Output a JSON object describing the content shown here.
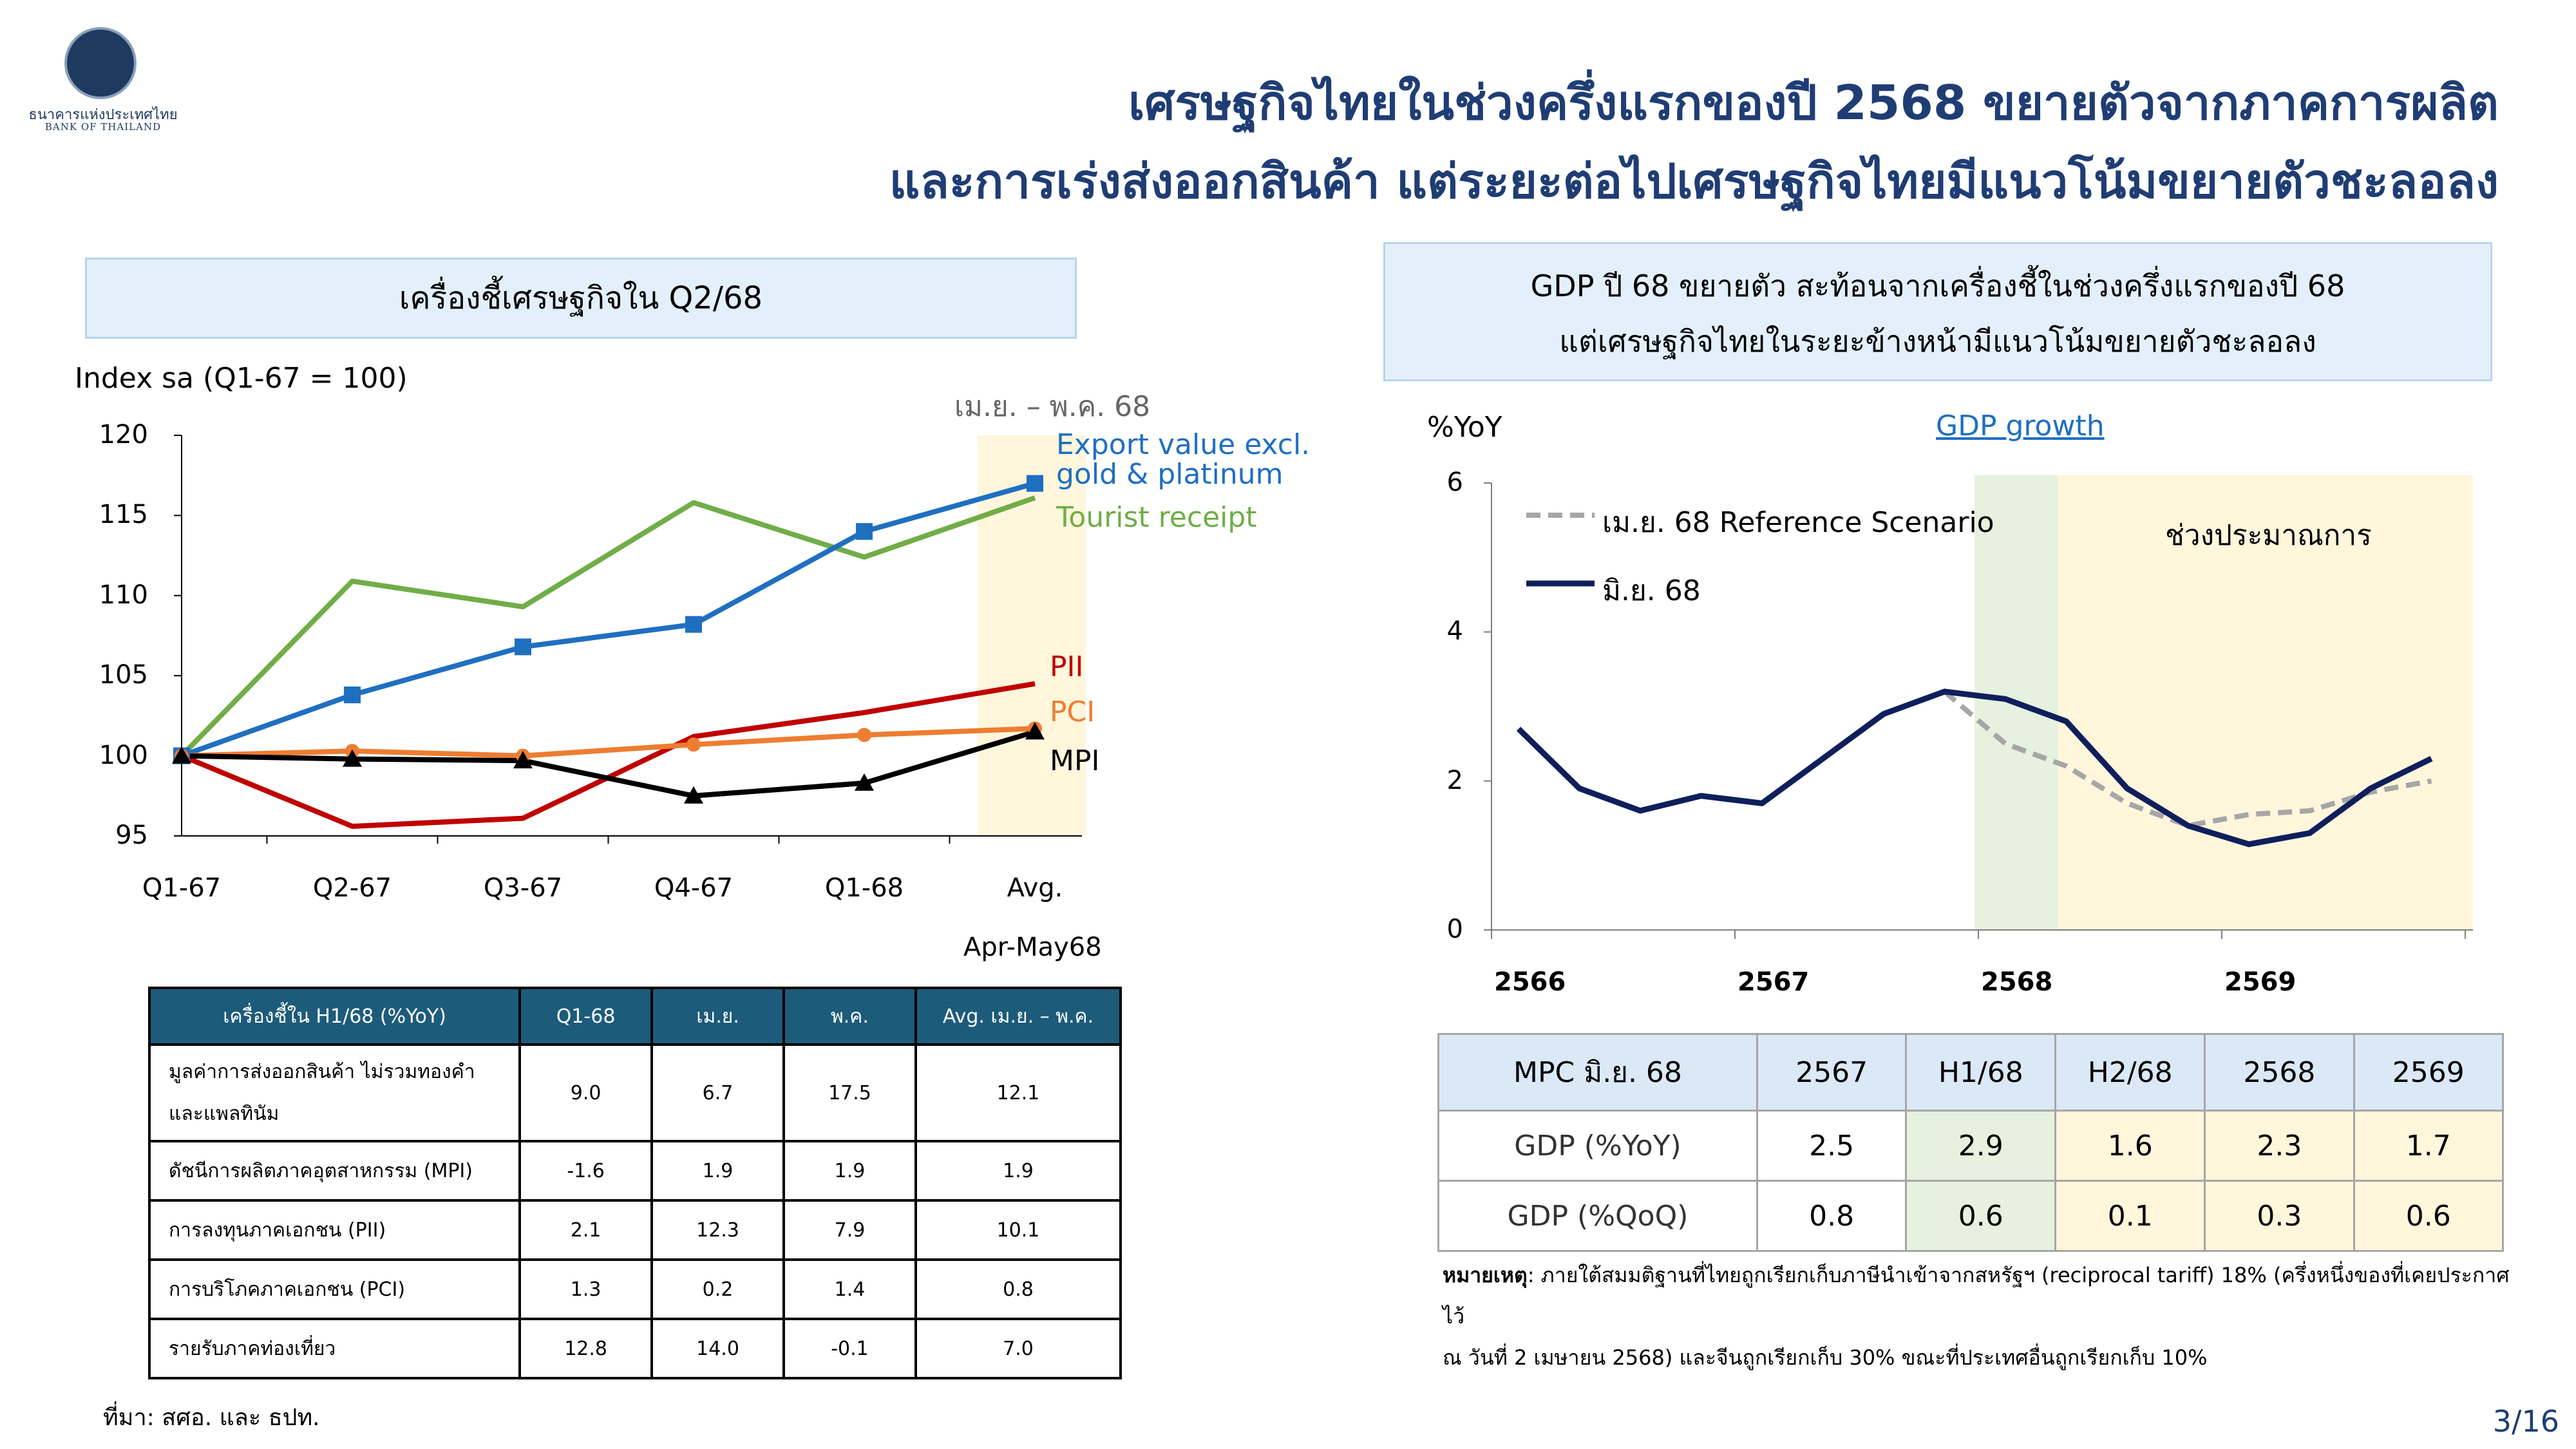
{
  "header": {
    "logo_text_th": "ธนาคารแห่งประเทศไทย",
    "logo_text_en": "BANK OF THAILAND",
    "title_line1": "เศรษฐกิจไทยในช่วงครึ่งแรกของปี 2568 ขยายตัวจากภาคการผลิต",
    "title_line2": "และการเร่งส่งออกสินค้า แต่ระยะต่อไปเศรษฐกิจไทยมีแนวโน้มขยายตัวชะลอลง"
  },
  "left_panel": {
    "heading": "เครื่องชี้เศรษฐกิจใน Q2/68",
    "table": {
      "headers": [
        "เครื่องชี้ใน H1/68 (%YoY)",
        "Q1-68",
        "เม.ย.",
        "พ.ค.",
        "Avg. เม.ย. – พ.ค."
      ],
      "rows": [
        {
          "name_line1": "มูลค่าการส่งออกสินค้า ไม่รวมทองคำ",
          "name_line2": "และแพลทินัม",
          "q1": "9.0",
          "apr": "6.7",
          "may": "17.5",
          "avg": "12.1"
        },
        {
          "name_line1": "ดัชนีการผลิตภาคอุตสาหกรรม (MPI)",
          "name_line2": "",
          "q1": "-1.6",
          "apr": "1.9",
          "may": "1.9",
          "avg": "1.9"
        },
        {
          "name_line1": "การลงทุนภาคเอกชน (PII)",
          "name_line2": "",
          "q1": "2.1",
          "apr": "12.3",
          "may": "7.9",
          "avg": "10.1"
        },
        {
          "name_line1": "การบริโภคภาคเอกชน (PCI)",
          "name_line2": "",
          "q1": "1.3",
          "apr": "0.2",
          "may": "1.4",
          "avg": "0.8"
        },
        {
          "name_line1": "รายรับภาคท่องเที่ยว",
          "name_line2": "",
          "q1": "12.8",
          "apr": "14.0",
          "may": "-0.1",
          "avg": "7.0"
        }
      ]
    },
    "source": "ที่มา: สศอ. และ ธปท."
  },
  "right_panel": {
    "heading_line1": "GDP ปี 68 ขยายตัว สะท้อนจากเครื่องชี้ในช่วงครึ่งแรกของปี 68",
    "heading_line2": "แต่เศรษฐกิจไทยในระยะข้างหน้ามีแนวโน้มขยายตัวชะลอลง",
    "table": {
      "headers": [
        "MPC มิ.ย. 68",
        "2567",
        "H1/68",
        "H2/68",
        "2568",
        "2569"
      ],
      "rows": [
        {
          "label": "GDP (%YoY)",
          "values": [
            "2.5",
            "2.9",
            "1.6",
            "2.3",
            "1.7"
          ]
        },
        {
          "label": "GDP (%QoQ)",
          "values": [
            "0.8",
            "0.6",
            "0.1",
            "0.3",
            "0.6"
          ]
        }
      ]
    },
    "note_label": "หมายเหตุ",
    "note_line1": ": ภายใต้สมมติฐานที่ไทยถูกเรียกเก็บภาษีนำเข้าจากสหรัฐฯ (reciprocal tariff) 18% (ครึ่งหนึ่งของที่เคยประกาศไว้",
    "note_line2": "ณ วันที่ 2 เมษายน 2568) และจีนถูกเรียกเก็บ 30% ขณะที่ประเทศอื่นถูกเรียกเก็บ 10%"
  },
  "page_number": "3/16",
  "colors": {
    "navy": "#1f3d74",
    "export_blue": "#1f6fc1",
    "tourist_green": "#70ad47",
    "pii_red": "#c00000",
    "pci_orange": "#ed7d31",
    "mpi_black": "#000000",
    "gdp_navy": "#0f1f5c",
    "ref_grey": "#a6a6a6",
    "shade_yellow": "#fff6dc",
    "shade_green": "#e6f2df"
  },
  "chart_data": [
    {
      "type": "line",
      "ylabel": "Index sa (Q1-67 = 100)",
      "ylim": [
        95,
        120
      ],
      "yticks": [
        95,
        100,
        105,
        110,
        115,
        120
      ],
      "categories": [
        "Q1-67",
        "Q2-67",
        "Q3-67",
        "Q4-67",
        "Q1-68",
        "Avg."
      ],
      "xlabel_extra": "Apr-May68",
      "shaded_label": "เม.ย. – พ.ค. 68",
      "series": [
        {
          "name": "Export value excl. gold & platinum",
          "name_line1": "Export value excl.",
          "name_line2": "gold & platinum",
          "color": "#1f6fc1",
          "marker": "square",
          "values": [
            100,
            103.8,
            106.8,
            108.2,
            114.0,
            117.0
          ]
        },
        {
          "name": "Tourist receipt",
          "color": "#70ad47",
          "marker": "none",
          "values": [
            100,
            110.9,
            109.3,
            115.8,
            112.4,
            116.1
          ]
        },
        {
          "name": "PII",
          "color": "#c00000",
          "marker": "none",
          "values": [
            100,
            95.6,
            96.1,
            101.2,
            102.7,
            104.5
          ]
        },
        {
          "name": "PCI",
          "color": "#ed7d31",
          "marker": "circle",
          "values": [
            100,
            100.3,
            100.0,
            100.7,
            101.3,
            101.7
          ]
        },
        {
          "name": "MPI",
          "color": "#000000",
          "marker": "triangle",
          "values": [
            100,
            99.8,
            99.7,
            97.5,
            98.3,
            101.5
          ]
        }
      ]
    },
    {
      "type": "line",
      "title": "GDP growth",
      "ylabel": "%YoY",
      "ylim": [
        0,
        6
      ],
      "yticks": [
        0,
        2,
        4,
        6
      ],
      "xlim": [
        2566,
        2570
      ],
      "xticks": [
        2566,
        2567,
        2568,
        2569
      ],
      "legend_position": "top-left",
      "shaded_label": "ช่วงประมาณการ",
      "series": [
        {
          "name": "เม.ย. 68 Reference Scenario",
          "style": "dashed",
          "color": "#a6a6a6",
          "x": [
            2567.75,
            2568.0,
            2568.25,
            2568.5,
            2568.75,
            2569.0,
            2569.25,
            2569.5,
            2569.75
          ],
          "values": [
            3.2,
            2.5,
            2.2,
            1.7,
            1.4,
            1.55,
            1.6,
            1.85,
            2.0
          ]
        },
        {
          "name": "มิ.ย. 68",
          "style": "solid",
          "color": "#0f1f5c",
          "x": [
            2566.0,
            2566.25,
            2566.5,
            2566.75,
            2567.0,
            2567.25,
            2567.5,
            2567.75,
            2568.0,
            2568.25,
            2568.5,
            2568.75,
            2569.0,
            2569.25,
            2569.5,
            2569.75
          ],
          "values": [
            2.7,
            1.9,
            1.6,
            1.8,
            1.7,
            2.3,
            2.9,
            3.2,
            3.1,
            2.8,
            1.9,
            1.4,
            1.15,
            1.3,
            1.9,
            2.3
          ]
        }
      ]
    }
  ]
}
